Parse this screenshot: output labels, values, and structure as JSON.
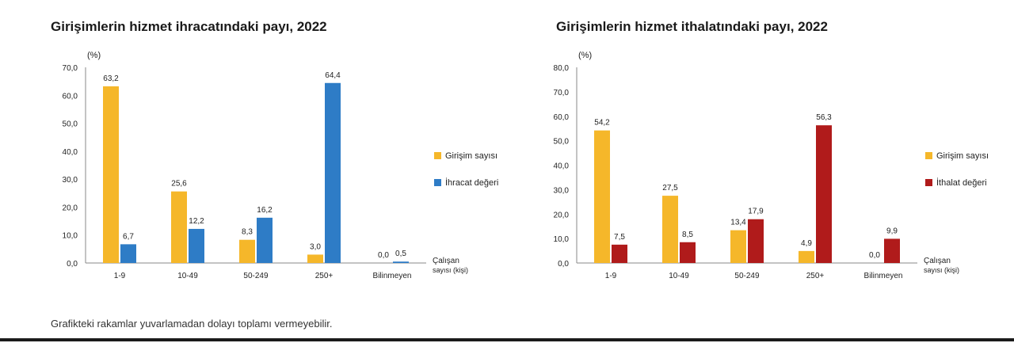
{
  "colors": {
    "count": "#f5b72a",
    "export": "#2e7cc6",
    "import": "#b01b1b",
    "axis": "#888888",
    "text": "#222222"
  },
  "footnote": "Grafikteki rakamlar yuvarlamadan dolayı toplamı vermeyebilir.",
  "chart_data": [
    {
      "type": "bar",
      "title": "Girişimlerin hizmet ihracatındaki payı, 2022",
      "ylabel": "(%)",
      "xlabel": [
        "Çalışan",
        "sayısı (kişi)"
      ],
      "categories": [
        "1-9",
        "10-49",
        "50-249",
        "250+",
        "Bilinmeyen"
      ],
      "ylim": [
        0,
        70
      ],
      "yticks": [
        "0,0",
        "10,0",
        "20,0",
        "30,0",
        "40,0",
        "50,0",
        "60,0",
        "70,0"
      ],
      "legend_position": "right",
      "series": [
        {
          "name": "Girişim sayısı",
          "color": "#f5b72a",
          "values": [
            63.2,
            25.6,
            8.3,
            3.0,
            0.0
          ],
          "labels": [
            "63,2",
            "25,6",
            "8,3",
            "3,0",
            "0,0"
          ]
        },
        {
          "name": "İhracat değeri",
          "color": "#2e7cc6",
          "values": [
            6.7,
            12.2,
            16.2,
            64.4,
            0.5
          ],
          "labels": [
            "6,7",
            "12,2",
            "16,2",
            "64,4",
            "0,5"
          ]
        }
      ]
    },
    {
      "type": "bar",
      "title": "Girişimlerin hizmet ithalatındaki payı, 2022",
      "ylabel": "(%)",
      "xlabel": [
        "Çalışan",
        "sayısı (kişi)"
      ],
      "categories": [
        "1-9",
        "10-49",
        "50-249",
        "250+",
        "Bilinmeyen"
      ],
      "ylim": [
        0,
        80
      ],
      "yticks": [
        "0,0",
        "10,0",
        "20,0",
        "30,0",
        "40,0",
        "50,0",
        "60,0",
        "70,0",
        "80,0"
      ],
      "legend_position": "right",
      "series": [
        {
          "name": "Girişim sayısı",
          "color": "#f5b72a",
          "values": [
            54.2,
            27.5,
            13.4,
            4.9,
            0.0
          ],
          "labels": [
            "54,2",
            "27,5",
            "13,4",
            "4,9",
            "0,0"
          ]
        },
        {
          "name": "İthalat değeri",
          "color": "#b01b1b",
          "values": [
            7.5,
            8.5,
            17.9,
            56.3,
            9.9
          ],
          "labels": [
            "7,5",
            "8,5",
            "17,9",
            "56,3",
            "9,9"
          ]
        }
      ]
    }
  ]
}
